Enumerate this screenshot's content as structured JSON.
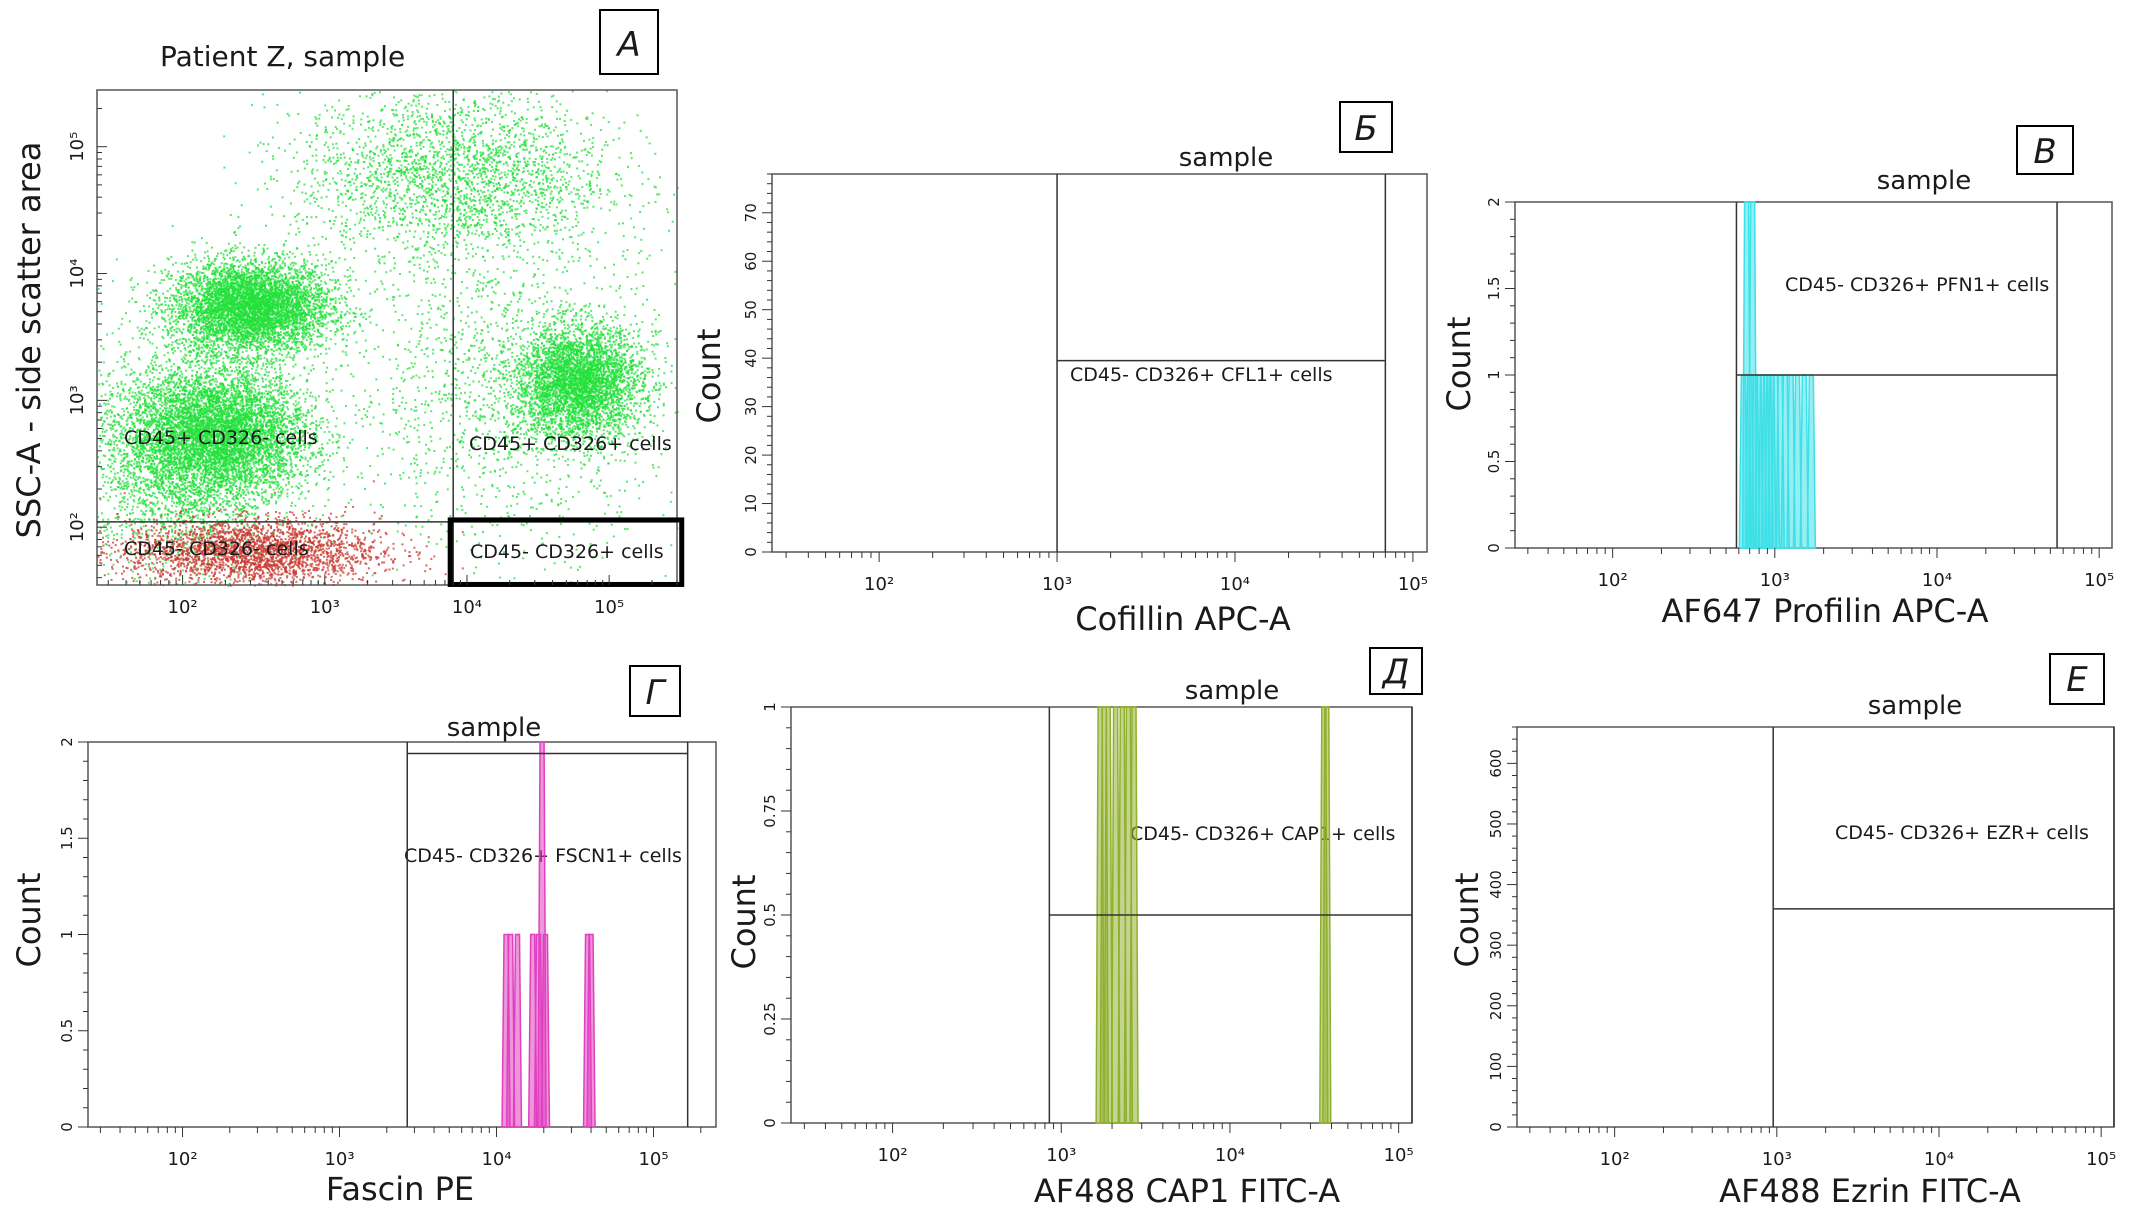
{
  "chart_data": [
    {
      "id": "A",
      "type": "scatter",
      "panel_letter": "А",
      "title": "Patient Z, sample",
      "xlabel": "",
      "ylabel": "SSC-A - side scatter area",
      "x_scale": "log",
      "y_scale": "log",
      "xlim": [
        25,
        300000
      ],
      "ylim": [
        35,
        280000
      ],
      "x_ticks": [
        100,
        1000,
        10000,
        100000
      ],
      "y_ticks": [
        100,
        1000,
        10000,
        100000
      ],
      "x_tick_labels": [
        "10²",
        "10³",
        "10⁴",
        "10⁵"
      ],
      "y_tick_labels": [
        "10²",
        "10³",
        "10⁴",
        "10⁵"
      ],
      "gate_x": 8000,
      "gate_y": 110,
      "highlight_gate": {
        "x": [
          8000,
          280000
        ],
        "y": [
          38,
          110
        ]
      },
      "colors": {
        "green": "#22e03a",
        "red": "#c83a30"
      },
      "populations": [
        {
          "color": "green",
          "count": 5200,
          "mx": 300,
          "my": 5500,
          "sx": 0.28,
          "sy": 0.18
        },
        {
          "color": "green",
          "count": 5200,
          "mx": 180,
          "my": 550,
          "sx": 0.32,
          "sy": 0.25
        },
        {
          "color": "green",
          "count": 2500,
          "mx": 90,
          "my": 350,
          "sx": 0.35,
          "sy": 0.45
        },
        {
          "color": "green",
          "count": 3800,
          "mx": 60000,
          "my": 1400,
          "sx": 0.22,
          "sy": 0.22
        },
        {
          "color": "green",
          "count": 2600,
          "mx": 8000,
          "my": 60000,
          "sx": 0.55,
          "sy": 0.35
        },
        {
          "color": "green",
          "count": 1500,
          "mx": 20000,
          "my": 1200,
          "sx": 0.6,
          "sy": 0.6
        },
        {
          "color": "red",
          "count": 2600,
          "mx": 300,
          "my": 65,
          "sx": 0.45,
          "sy": 0.13
        }
      ],
      "gate_labels": {
        "q1": "CD45+ CD326- cells",
        "q2": "CD45+ CD326+ cells",
        "q3": "CD45- CD326- cells",
        "q4": "CD45- CD326+ cells"
      }
    },
    {
      "id": "B",
      "type": "histogram",
      "panel_letter": "Б",
      "title": "sample",
      "xlabel": "Cofillin APC-A",
      "ylabel": "Count",
      "x_scale": "log",
      "xlim": [
        25,
        120000
      ],
      "ylim": [
        0,
        78
      ],
      "x_ticks": [
        100,
        1000,
        10000,
        100000
      ],
      "x_tick_labels": [
        "10²",
        "10³",
        "10⁴",
        "10⁵"
      ],
      "y_ticks": [
        0,
        10,
        20,
        30,
        40,
        50,
        60,
        70
      ],
      "y_tick_labels": [
        "0",
        "10",
        "20",
        "30",
        "40",
        "50",
        "60",
        "70"
      ],
      "gate": {
        "x": [
          1000,
          70000
        ],
        "y": 39.5,
        "label": "CD45- CD326+ CFL1+ cells"
      },
      "color": "#000000",
      "peaks": []
    },
    {
      "id": "C",
      "type": "histogram",
      "panel_letter": "В",
      "title": "sample",
      "xlabel": "AF647 Profilin APC-A",
      "ylabel": "Count",
      "x_scale": "log",
      "xlim": [
        25,
        120000
      ],
      "ylim": [
        0,
        2
      ],
      "x_ticks": [
        100,
        1000,
        10000,
        100000
      ],
      "x_tick_labels": [
        "10²",
        "10³",
        "10⁴",
        "10⁵"
      ],
      "y_ticks": [
        0,
        0.5,
        1,
        1.5,
        2
      ],
      "y_tick_labels": [
        "0",
        "0.5",
        "1",
        "1.5",
        "2"
      ],
      "gate": {
        "x": [
          580,
          55000
        ],
        "y": 1,
        "label": "CD45- CD326+ PFN1+ cells"
      },
      "color": "#3ee0e8",
      "peaks": [
        [
          640,
          1
        ],
        [
          670,
          2
        ],
        [
          700,
          1
        ],
        [
          730,
          2
        ],
        [
          760,
          1
        ],
        [
          800,
          1
        ],
        [
          840,
          1
        ],
        [
          880,
          1
        ],
        [
          920,
          1
        ],
        [
          960,
          1
        ],
        [
          1010,
          1
        ],
        [
          1080,
          1
        ],
        [
          1160,
          1
        ],
        [
          1260,
          1
        ],
        [
          1380,
          1
        ],
        [
          1520,
          1
        ],
        [
          1680,
          1
        ]
      ]
    },
    {
      "id": "D",
      "type": "histogram",
      "panel_letter": "Г",
      "title": "sample",
      "xlabel": "Fascin PE",
      "ylabel": "Count",
      "x_scale": "log",
      "xlim": [
        25,
        250000
      ],
      "ylim": [
        0,
        2
      ],
      "x_ticks": [
        100,
        1000,
        10000,
        100000
      ],
      "x_tick_labels": [
        "10²",
        "10³",
        "10⁴",
        "10⁵"
      ],
      "y_ticks": [
        0,
        0.5,
        1,
        1.5,
        2
      ],
      "y_tick_labels": [
        "0",
        "0.5",
        "1",
        "1.5",
        "2"
      ],
      "gate": {
        "x": [
          2700,
          165000
        ],
        "y": 1.94,
        "label": "CD45- CD326+ FSCN1+ cells"
      },
      "color": "#e040c0",
      "peaks": [
        [
          11500,
          1
        ],
        [
          12300,
          1
        ],
        [
          13600,
          1
        ],
        [
          17000,
          1
        ],
        [
          18500,
          1
        ],
        [
          19500,
          2
        ],
        [
          20500,
          1
        ],
        [
          38000,
          1
        ],
        [
          40000,
          1
        ]
      ]
    },
    {
      "id": "E",
      "type": "histogram",
      "panel_letter": "Д",
      "title": "sample",
      "xlabel": "AF488 CAP1 FITC-A",
      "ylabel": "Count",
      "x_scale": "log",
      "xlim": [
        25,
        120000
      ],
      "ylim": [
        0,
        1
      ],
      "x_ticks": [
        100,
        1000,
        10000,
        100000
      ],
      "x_tick_labels": [
        "10²",
        "10³",
        "10⁴",
        "10⁵"
      ],
      "y_ticks": [
        0,
        0.25,
        0.5,
        0.75,
        1
      ],
      "y_tick_labels": [
        "0",
        "0.25",
        "0.5",
        "0.75",
        "1"
      ],
      "gate": {
        "x": [
          850,
          120000
        ],
        "y": 0.5,
        "label": "CD45- CD326+ CAP1+ cells"
      },
      "color": "#90b030",
      "peaks": [
        [
          1700,
          1
        ],
        [
          1800,
          1
        ],
        [
          1900,
          1
        ],
        [
          2100,
          1
        ],
        [
          2300,
          1
        ],
        [
          2500,
          1
        ],
        [
          2700,
          1
        ],
        [
          36000,
          1
        ],
        [
          37500,
          1
        ]
      ]
    },
    {
      "id": "F",
      "type": "histogram",
      "panel_letter": "Е",
      "title": "sample",
      "xlabel": "AF488 Ezrin FITC-A",
      "ylabel": "Count",
      "x_scale": "log",
      "xlim": [
        25,
        120000
      ],
      "ylim": [
        0,
        660
      ],
      "x_ticks": [
        100,
        1000,
        10000,
        100000
      ],
      "x_tick_labels": [
        "10²",
        "10³",
        "10⁴",
        "10⁵"
      ],
      "y_ticks": [
        0,
        100,
        200,
        300,
        400,
        500,
        600
      ],
      "y_tick_labels": [
        "0",
        "100",
        "200",
        "300",
        "400",
        "500",
        "600"
      ],
      "gate": {
        "x": [
          950,
          120000
        ],
        "y": 360,
        "label": "CD45- CD326+ EZR+ cells"
      },
      "color": "#000000",
      "peaks": []
    }
  ]
}
